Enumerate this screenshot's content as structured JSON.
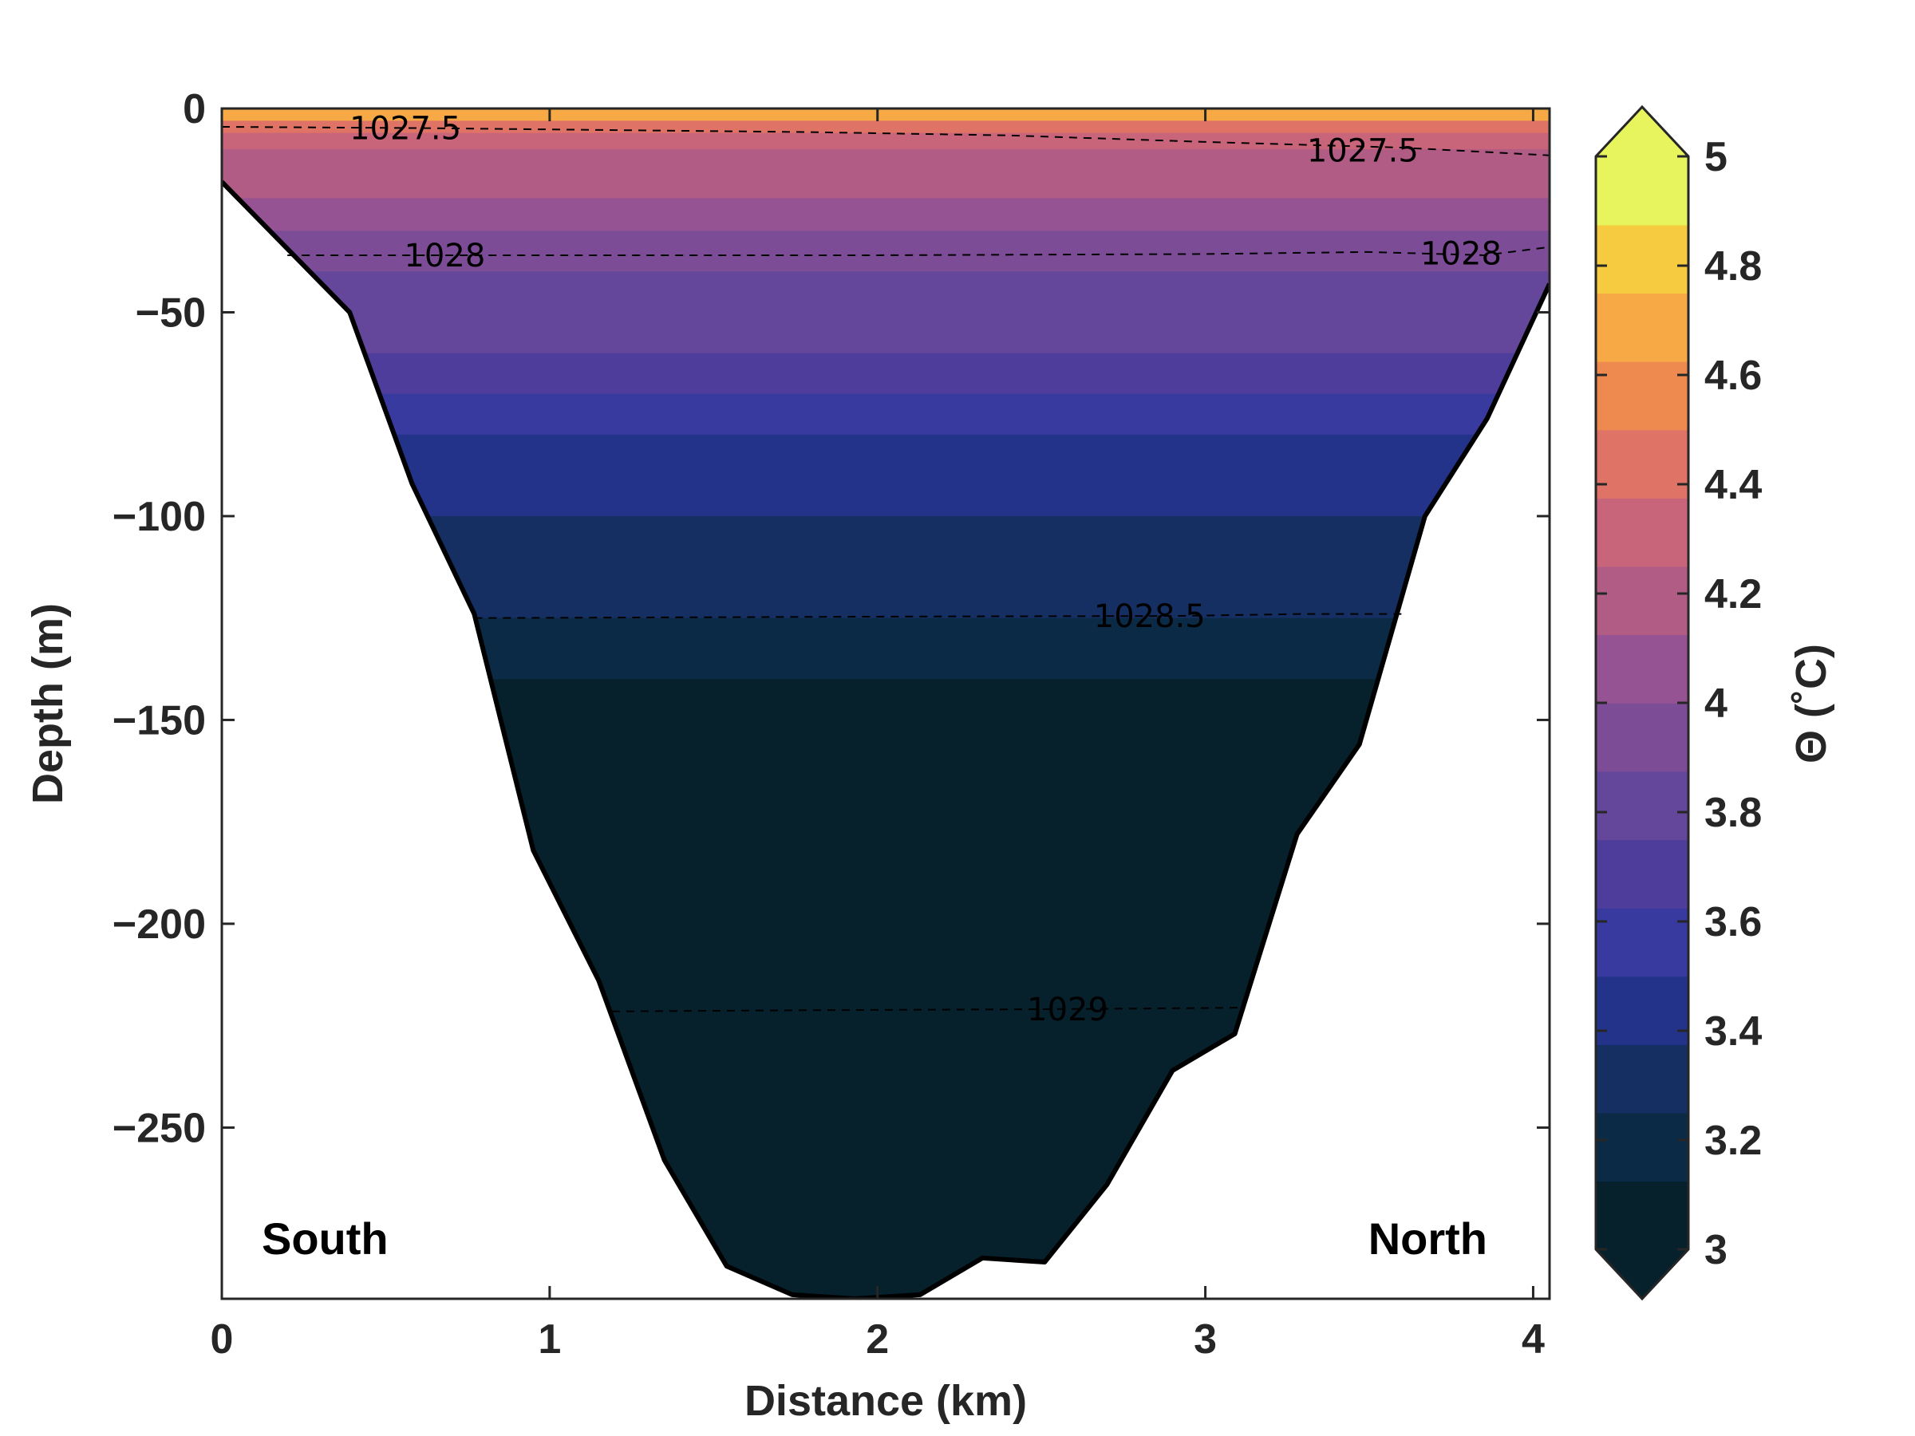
{
  "chart_data": {
    "type": "heatmap",
    "subtype": "filled contour section with density isolines",
    "xlabel": "Distance (km)",
    "ylabel": "Depth (m)",
    "xlim": [
      0,
      4.05
    ],
    "ylim": [
      -292,
      0
    ],
    "xticks": [
      0,
      1,
      2,
      3,
      4
    ],
    "yticks": [
      0,
      -50,
      -100,
      -150,
      -200,
      -250
    ],
    "xtick_labels": [
      "0",
      "1",
      "2",
      "3",
      "4"
    ],
    "ytick_labels": [
      "0",
      "−50",
      "−100",
      "−150",
      "−200",
      "−250"
    ],
    "colorbar": {
      "label": "Θ (˚C)",
      "range": [
        3,
        5
      ],
      "ticks": [
        3,
        3.2,
        3.4,
        3.6,
        3.8,
        4,
        4.2,
        4.4,
        4.6,
        4.8,
        5
      ],
      "tick_labels": [
        "3",
        "3.2",
        "3.4",
        "3.6",
        "3.8",
        "4",
        "4.2",
        "4.4",
        "4.6",
        "4.8",
        "5"
      ],
      "extend": "both",
      "colors": [
        "#06202c",
        "#0b2a45",
        "#152f63",
        "#23338a",
        "#383a9f",
        "#4f3d9b",
        "#64469a",
        "#7c4c97",
        "#965393",
        "#b05c85",
        "#c9657a",
        "#de7366",
        "#ee8a50",
        "#f7a945",
        "#f6cb3f",
        "#e8f45e"
      ]
    },
    "temperature_profile": {
      "depths": [
        0,
        -3,
        -6,
        -10,
        -15,
        -22,
        -30,
        -40,
        -50,
        -60,
        -70,
        -80,
        -90,
        -100,
        -110,
        -125,
        -140,
        -292
      ],
      "theta": [
        4.7,
        4.5,
        4.35,
        4.25,
        4.15,
        4.05,
        3.95,
        3.85,
        3.75,
        3.65,
        3.55,
        3.45,
        3.38,
        3.3,
        3.2,
        3.12,
        3.05,
        3.0
      ]
    },
    "bathymetry": {
      "distance": [
        0,
        0.39,
        0.58,
        0.77,
        0.95,
        1.15,
        1.35,
        1.54,
        1.74,
        1.93,
        2.13,
        2.32,
        2.51,
        2.7,
        2.9,
        3.09,
        3.28,
        3.47,
        3.67,
        3.86,
        4.05
      ],
      "depth": [
        -18,
        -50,
        -92,
        -124,
        -182,
        -214,
        -258,
        -284,
        -291,
        -292,
        -291,
        -282,
        -283,
        -264,
        -236,
        -227,
        -178,
        -156,
        -100,
        -76,
        -43
      ]
    },
    "density_contours": [
      {
        "level": "1027.5",
        "x": [
          0,
          0.6,
          1.2,
          1.8,
          2.4,
          3.0,
          3.6,
          4.05
        ],
        "y": [
          -4.5,
          -4.8,
          -5.3,
          -5.8,
          -6.6,
          -8.2,
          -9.6,
          -11.5
        ],
        "label_at": [
          [
            0.56,
            -4.8
          ],
          [
            3.48,
            -10.3
          ]
        ]
      },
      {
        "level": "1028",
        "x": [
          0.2,
          1.0,
          2.0,
          3.0,
          3.5,
          3.85,
          4.05
        ],
        "y": [
          -36,
          -36,
          -36,
          -35.7,
          -35.2,
          -36,
          -34
        ],
        "label_at": [
          [
            0.68,
            -36
          ],
          [
            3.78,
            -35.5
          ]
        ]
      },
      {
        "level": "1028.5",
        "x": [
          0.77,
          1.5,
          2.2,
          2.9,
          3.3,
          3.6
        ],
        "y": [
          -125,
          -124.8,
          -124.6,
          -124.5,
          -124,
          -124
        ],
        "label_at": [
          [
            2.83,
            -124.5
          ]
        ]
      },
      {
        "level": "1029",
        "x": [
          1.19,
          1.8,
          2.4,
          2.8,
          3.1
        ],
        "y": [
          -221.5,
          -221.2,
          -221,
          -220.8,
          -220.6
        ],
        "label_at": [
          [
            2.58,
            -221
          ]
        ]
      }
    ],
    "annotations": [
      "South",
      "North"
    ]
  }
}
